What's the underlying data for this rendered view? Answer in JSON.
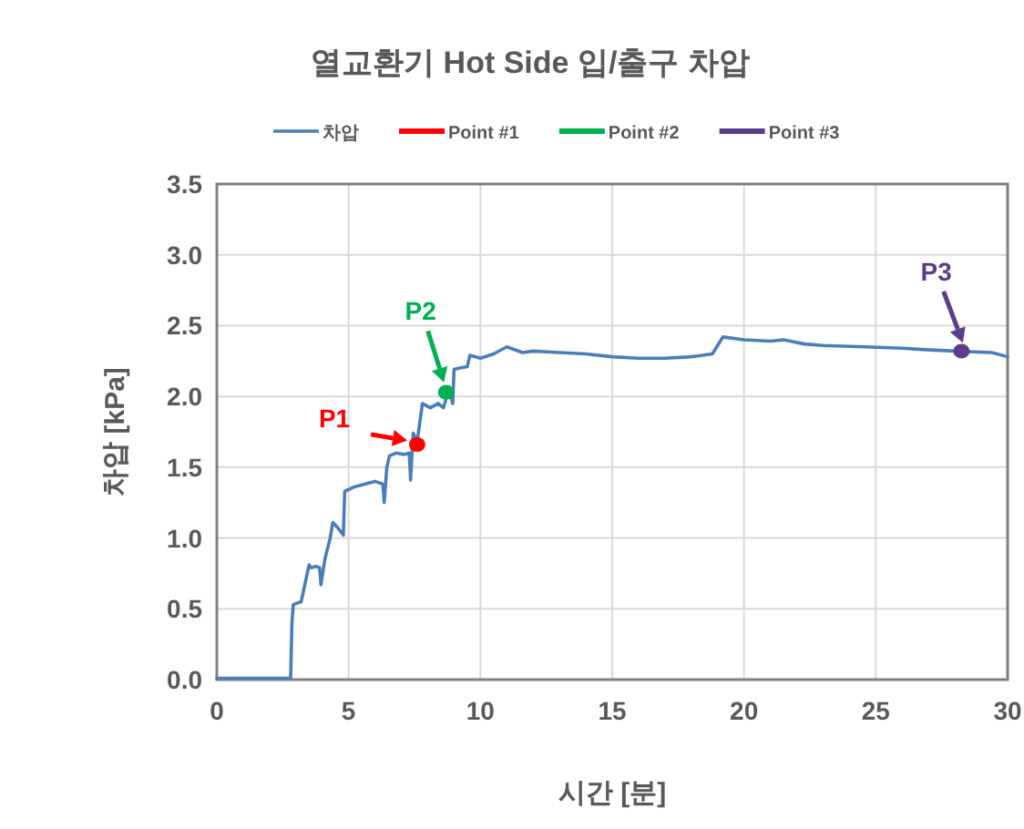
{
  "chart_data": {
    "type": "line",
    "title": "열교환기 Hot Side 입/출구 차압",
    "xlabel": "시간 [분]",
    "ylabel": "차압 [kPa]",
    "xlim": [
      0,
      30
    ],
    "xticks": [
      0,
      5,
      10,
      15,
      20,
      25,
      30
    ],
    "ylim": [
      0,
      3.5
    ],
    "yticks": [
      {
        "value": 0,
        "label": "0.0"
      },
      {
        "value": 0.5,
        "label": "0.5"
      },
      {
        "value": 1,
        "label": "1.0"
      },
      {
        "value": 1.5,
        "label": "1.5"
      },
      {
        "value": 2,
        "label": "2.0"
      },
      {
        "value": 2.5,
        "label": "2.5"
      },
      {
        "value": 3,
        "label": "3.0"
      },
      {
        "value": 3.5,
        "label": "3.5"
      }
    ],
    "grid": true,
    "legend": "top",
    "line_style": "solid",
    "series": [
      {
        "name": "차압",
        "color": "#4a7ebb",
        "x": [
          0,
          1,
          2,
          2.8,
          2.85,
          2.9,
          3.2,
          3.5,
          3.6,
          3.75,
          3.9,
          3.95,
          4.1,
          4.3,
          4.4,
          4.6,
          4.8,
          4.85,
          5.2,
          5.6,
          6.0,
          6.3,
          6.35,
          6.45,
          6.55,
          6.8,
          7.1,
          7.3,
          7.35,
          7.45,
          7.6,
          7.8,
          8.1,
          8.4,
          8.6,
          8.8,
          8.95,
          9.0,
          9.2,
          9.5,
          9.6,
          10,
          10.5,
          11,
          11.6,
          12,
          13,
          14,
          15,
          16,
          17,
          18,
          18.8,
          19.2,
          20,
          21,
          21.5,
          22.3,
          23,
          24.6,
          26,
          26.9,
          28,
          29.4,
          30
        ],
        "values": [
          0.01,
          0.01,
          0.01,
          0.01,
          0.4,
          0.53,
          0.55,
          0.81,
          0.79,
          0.8,
          0.79,
          0.67,
          0.85,
          1.0,
          1.11,
          1.07,
          1.02,
          1.33,
          1.36,
          1.38,
          1.4,
          1.38,
          1.25,
          1.5,
          1.58,
          1.6,
          1.59,
          1.6,
          1.41,
          1.74,
          1.68,
          1.95,
          1.92,
          1.95,
          1.92,
          2.05,
          1.95,
          2.19,
          2.2,
          2.21,
          2.29,
          2.27,
          2.3,
          2.35,
          2.31,
          2.32,
          2.31,
          2.3,
          2.28,
          2.27,
          2.27,
          2.28,
          2.3,
          2.42,
          2.4,
          2.39,
          2.4,
          2.37,
          2.36,
          2.35,
          2.34,
          2.33,
          2.32,
          2.31,
          2.28
        ]
      },
      {
        "name": "Point #1",
        "type": "scatter",
        "color": "#ff0000",
        "x": [
          7.6
        ],
        "values": [
          1.66
        ]
      },
      {
        "name": "Point #2",
        "type": "scatter",
        "color": "#00b050",
        "x": [
          8.7
        ],
        "values": [
          2.03
        ]
      },
      {
        "name": "Point #3",
        "type": "scatter",
        "color": "#5c3d8a",
        "x": [
          28.25
        ],
        "values": [
          2.32
        ]
      }
    ],
    "annotations": [
      {
        "text": "P1",
        "x": 7.5,
        "y": 1.68
      },
      {
        "text": "P2",
        "x": 8.7,
        "y": 2.05
      },
      {
        "text": "P3",
        "x": 28.4,
        "y": 2.33
      }
    ]
  }
}
